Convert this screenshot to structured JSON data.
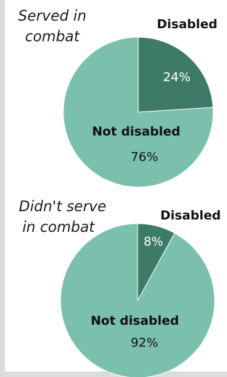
{
  "colors": {
    "disabled": "#3e7a68",
    "not_disabled": "#7bbfad",
    "edge": "#ffffff"
  },
  "chart_data": [
    {
      "type": "pie",
      "group_title_lines": [
        "Served in",
        "combat"
      ],
      "slices": [
        {
          "label": "Disabled",
          "value": 24,
          "value_label": "24%"
        },
        {
          "label": "Not disabled",
          "value": 76,
          "value_label": "76%"
        }
      ]
    },
    {
      "type": "pie",
      "group_title_lines": [
        "Didn't serve",
        "in combat"
      ],
      "slices": [
        {
          "label": "Disabled",
          "value": 8,
          "value_label": "8%"
        },
        {
          "label": "Not disabled",
          "value": 92,
          "value_label": "92%"
        }
      ]
    }
  ]
}
